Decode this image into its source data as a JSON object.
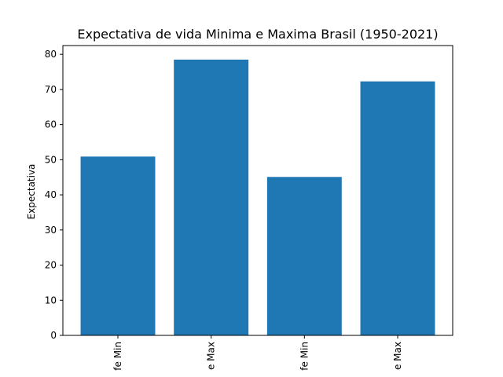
{
  "chart_data": {
    "type": "bar",
    "title": "Expectativa de vida Minima e Maxima Brasil (1950-2021)",
    "xlabel": "",
    "ylabel": "Expectativa",
    "categories": [
      "fe Min",
      "e Max",
      "fe Min",
      "e Max"
    ],
    "values": [
      50.9,
      78.5,
      45.1,
      72.3
    ],
    "ylim": [
      0,
      82.5
    ],
    "yticks": [
      0,
      10,
      20,
      30,
      40,
      50,
      60,
      70,
      80
    ],
    "grid": false,
    "bar_color": "#1f77b4"
  }
}
